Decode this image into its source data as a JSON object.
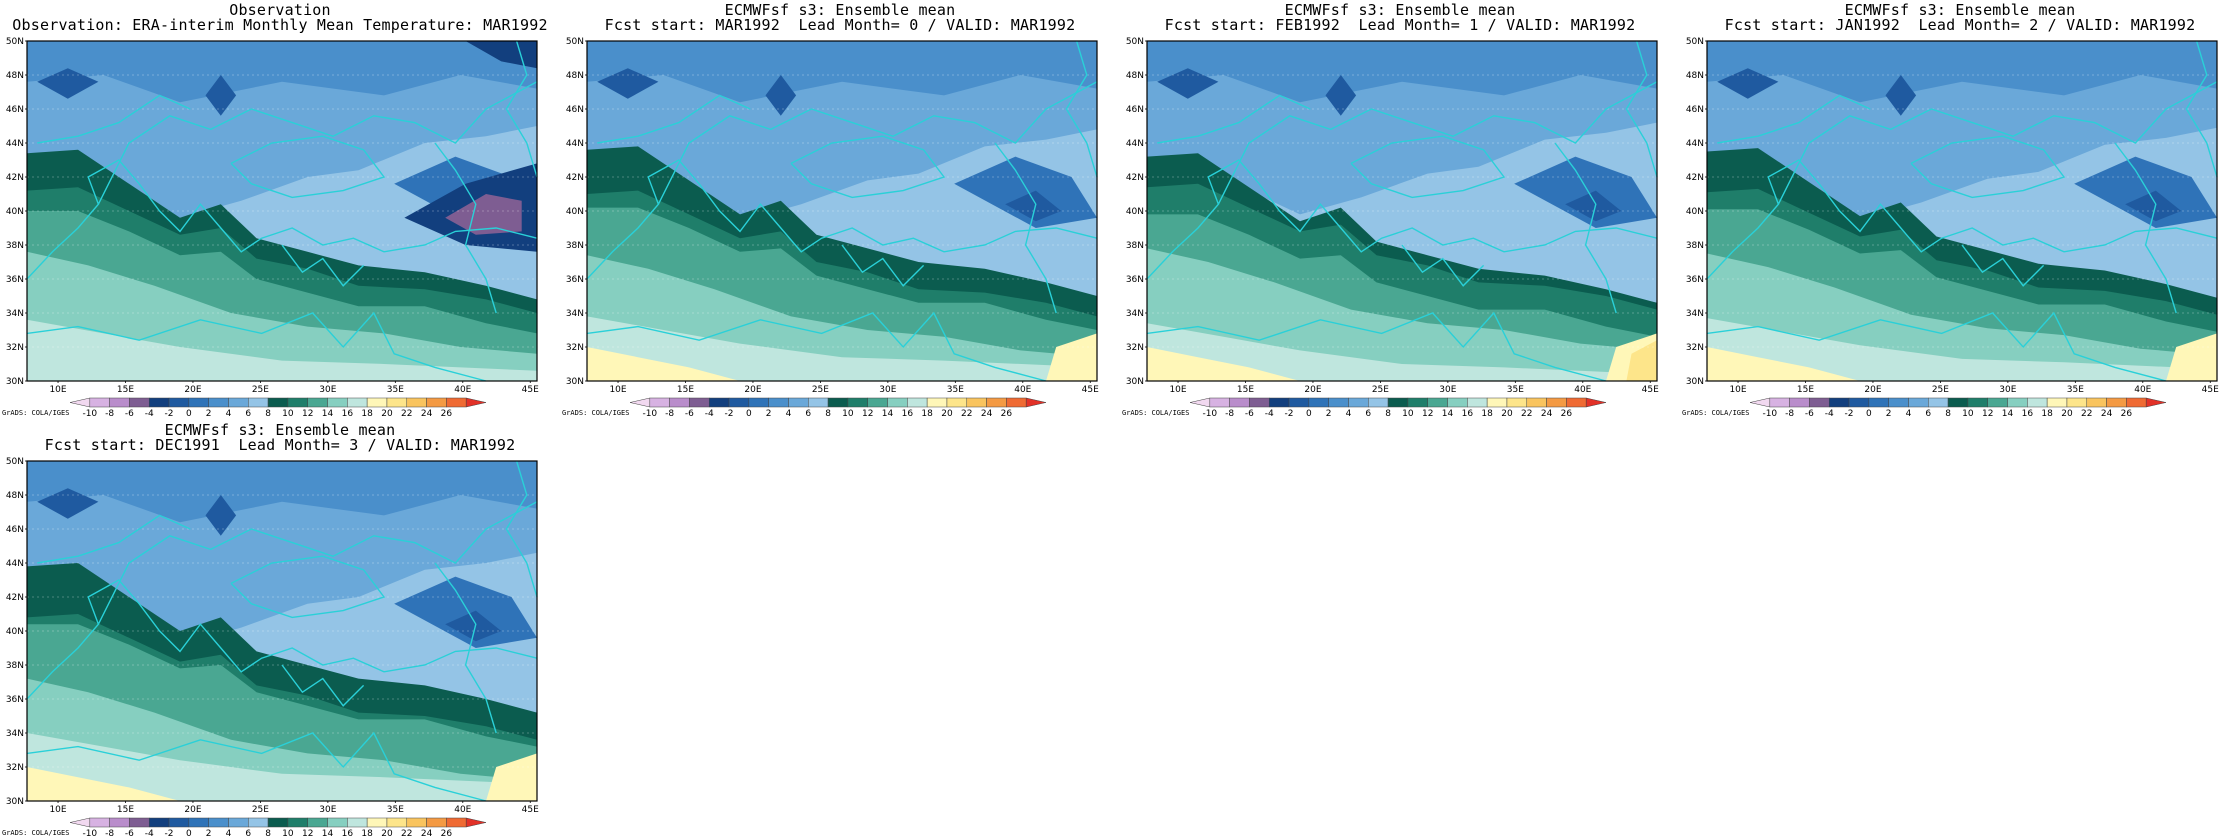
{
  "panels": [
    {
      "line1": "Observation",
      "line2": "Observation: ERA-interim Monthly Mean Temperature: MAR1992",
      "variant": "obs"
    },
    {
      "line1": "ECMWFsf s3: Ensemble mean",
      "line2": "Fcst start: MAR1992  Lead Month= 0 / VALID: MAR1992",
      "variant": "f0"
    },
    {
      "line1": "ECMWFsf s3: Ensemble mean",
      "line2": "Fcst start: FEB1992  Lead Month= 1 / VALID: MAR1992",
      "variant": "f1"
    },
    {
      "line1": "ECMWFsf s3: Ensemble mean",
      "line2": "Fcst start: JAN1992  Lead Month= 2 / VALID: MAR1992",
      "variant": "f2"
    },
    {
      "line1": "ECMWFsf s3: Ensemble mean",
      "line2": "Fcst start: DEC1991  Lead Month= 3 / VALID: MAR1992",
      "variant": "f3"
    }
  ],
  "credit": "GrADS: COLA/IGES",
  "lat_labels": [
    "50N",
    "48N",
    "46N",
    "44N",
    "42N",
    "40N",
    "38N",
    "36N",
    "34N",
    "32N",
    "30N"
  ],
  "lon_labels": [
    "10E",
    "15E",
    "20E",
    "25E",
    "30E",
    "35E",
    "40E",
    "45E"
  ],
  "colorbar": {
    "labels": [
      "-10",
      "-8",
      "-6",
      "-4",
      "-2",
      "0",
      "2",
      "4",
      "6",
      "8",
      "10",
      "12",
      "14",
      "16",
      "18",
      "20",
      "22",
      "24",
      "26"
    ],
    "colors": [
      "#f2d9f0",
      "#d7b2e2",
      "#b98dcb",
      "#7e5d92",
      "#123f7e",
      "#1f5aa0",
      "#2f73b8",
      "#4a8fcb",
      "#6aa8d9",
      "#94c4e6",
      "#0b5c4f",
      "#1f7e6a",
      "#4aa792",
      "#86cfc0",
      "#bfe6de",
      "#fff7b8",
      "#fde58a",
      "#f9c45e",
      "#f49a43",
      "#ef6a33",
      "#e23128"
    ]
  },
  "colors": {
    "coast": "#2ad0d8",
    "frame": "#000000"
  },
  "chart_data": {
    "type": "heatmap",
    "variable": "Monthly Mean Temperature",
    "lon_range": [
      "10E",
      "45E"
    ],
    "lat_range": [
      "30N",
      "50N"
    ],
    "levels": [
      -10,
      -8,
      -6,
      -4,
      -2,
      0,
      2,
      4,
      6,
      8,
      10,
      12,
      14,
      16,
      18,
      20,
      22,
      24,
      26
    ]
  }
}
